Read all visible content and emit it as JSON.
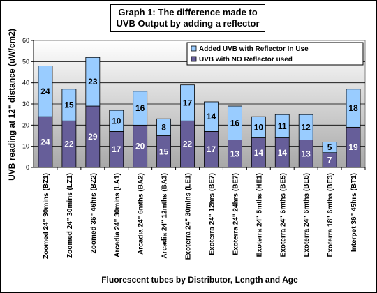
{
  "chart_data": {
    "type": "bar",
    "stacked": true,
    "title_lines": [
      "Graph 1: The difference made to",
      "UVB Output by adding a reflector"
    ],
    "xlabel": "Fluorescent tubes by Distributor, Length and Age",
    "ylabel": "UVB reading at 12\" distance (uW/cm2)",
    "ylim": [
      0,
      60
    ],
    "yticks": [
      0,
      10,
      20,
      30,
      40,
      50,
      60
    ],
    "grid": true,
    "legend_position": "top-right",
    "categories": [
      "Zoomed 24\"  30mins (BZ1)",
      "Zoomed 24\"  30mins (LZ1)",
      "Zoomed 36\"  46hrs (BZ2)",
      "Arcadia 24\"  30mins (LA1)",
      "Arcadia 24\"  6mths (BA2)",
      "Arcadia 24\"  12mths (BA3)",
      "Exoterra 24\"  30mins (LE1)",
      "Exoterra 24\"  12hrs (BE7)",
      "Exoterra 24\"  24hrs (BE7)",
      "Exoterra 24\"  5mths (HE1)",
      "Exoterra 24\"  6mths (BE5)",
      "Exoterra 24\"  6mths (BE6)",
      "Exoterra 18\"  6mths (BE3)",
      "Interpet 36\"  45hrs (BT1)"
    ],
    "series": [
      {
        "name": "UVB with NO Reflector used",
        "color": "#665e99",
        "values": [
          24,
          22,
          29,
          17,
          20,
          15,
          22,
          17,
          13,
          14,
          14,
          13,
          7,
          19
        ]
      },
      {
        "name": "Added UVB with Reflector In Use",
        "color": "#99ccff",
        "values": [
          24,
          15,
          23,
          10,
          16,
          8,
          17,
          14,
          16,
          10,
          11,
          12,
          5,
          18
        ]
      }
    ]
  }
}
